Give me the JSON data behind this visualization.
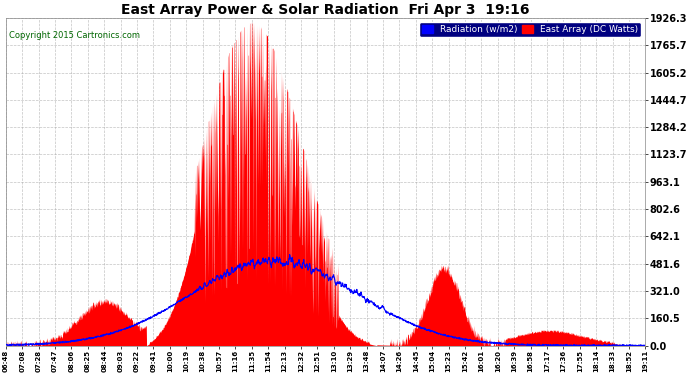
{
  "title": "East Array Power & Solar Radiation  Fri Apr 3  19:16",
  "copyright": "Copyright 2015 Cartronics.com",
  "legend_blue": "Radiation (w/m2)",
  "legend_red": "East Array (DC Watts)",
  "bg_color": "#ffffff",
  "plot_bg_color": "#ffffff",
  "grid_color": "#aaaaaa",
  "title_color": "#000000",
  "tick_color": "#000000",
  "copyright_color": "#006600",
  "yticks": [
    0.0,
    160.5,
    321.0,
    481.6,
    642.1,
    802.6,
    963.1,
    1123.7,
    1284.2,
    1444.7,
    1605.2,
    1765.7,
    1926.3
  ],
  "ymax": 1926.3,
  "xtick_labels": [
    "06:48",
    "07:08",
    "07:28",
    "07:47",
    "08:06",
    "08:25",
    "08:44",
    "09:03",
    "09:22",
    "09:41",
    "10:00",
    "10:19",
    "10:38",
    "10:57",
    "11:16",
    "11:35",
    "11:54",
    "12:13",
    "12:32",
    "12:51",
    "13:10",
    "13:29",
    "13:48",
    "14:07",
    "14:26",
    "14:45",
    "15:04",
    "15:23",
    "15:42",
    "16:01",
    "16:20",
    "16:39",
    "16:58",
    "17:17",
    "17:36",
    "17:55",
    "18:14",
    "18:33",
    "18:52",
    "19:11"
  ]
}
